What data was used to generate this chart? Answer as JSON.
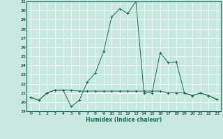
{
  "xlabel": "Humidex (Indice chaleur)",
  "ylabel": "",
  "bg_color": "#c8e8e0",
  "grid_color": "#ffffff",
  "line_color": "#1a6b5a",
  "xlim": [
    -0.5,
    23.5
  ],
  "ylim": [
    19,
    31
  ],
  "xticks": [
    0,
    1,
    2,
    3,
    4,
    5,
    6,
    7,
    8,
    9,
    10,
    11,
    12,
    13,
    14,
    15,
    16,
    17,
    18,
    19,
    20,
    21,
    22,
    23
  ],
  "yticks": [
    19,
    20,
    21,
    22,
    23,
    24,
    25,
    26,
    27,
    28,
    29,
    30,
    31
  ],
  "x": [
    0,
    1,
    2,
    3,
    4,
    5,
    6,
    7,
    8,
    9,
    10,
    11,
    12,
    13,
    14,
    15,
    16,
    17,
    18,
    19,
    20,
    21,
    22,
    23
  ],
  "y_main": [
    20.5,
    20.2,
    21.0,
    21.3,
    21.3,
    19.5,
    20.2,
    22.2,
    23.2,
    25.5,
    29.3,
    30.2,
    29.7,
    31.0,
    21.0,
    21.0,
    25.4,
    24.3,
    24.4,
    21.0,
    20.7,
    21.0,
    20.7,
    20.3
  ],
  "y_flat": [
    20.5,
    20.2,
    21.0,
    21.3,
    21.3,
    21.3,
    21.2,
    21.2,
    21.2,
    21.2,
    21.2,
    21.2,
    21.2,
    21.2,
    21.2,
    21.2,
    21.2,
    21.0,
    21.0,
    21.0,
    20.7,
    21.0,
    20.7,
    20.3
  ]
}
